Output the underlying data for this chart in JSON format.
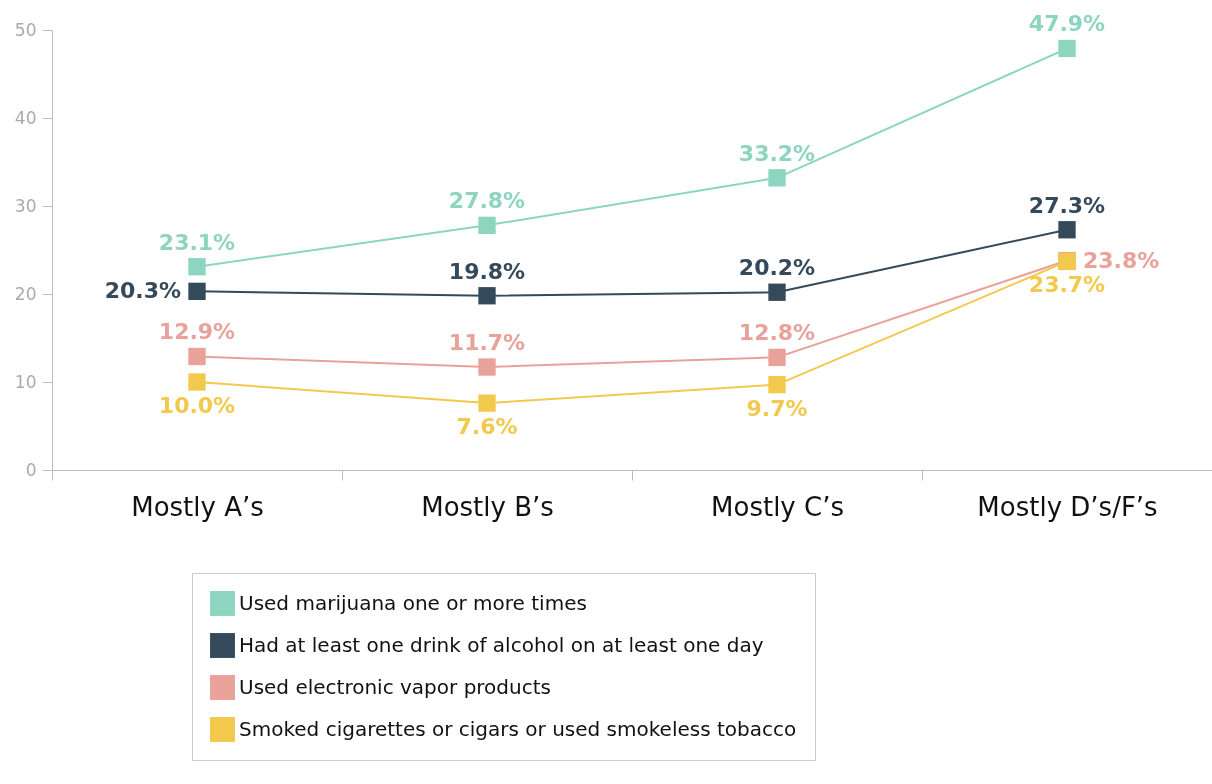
{
  "chart_data": {
    "type": "line",
    "categories": [
      "Mostly A’s",
      "Mostly B’s",
      "Mostly C’s",
      "Mostly D’s/F’s"
    ],
    "ylim": [
      0,
      50
    ],
    "yticks": [
      0,
      10,
      20,
      30,
      40,
      50
    ],
    "grid": false,
    "legend": "bottom",
    "marker": "square",
    "line_style": "solid",
    "series": [
      {
        "name": "Used marijuana one or more times",
        "color": "#8dd5bf",
        "values": [
          23.1,
          27.8,
          33.2,
          47.9
        ],
        "value_labels": [
          "23.1%",
          "27.8%",
          "33.2%",
          "47.9%"
        ]
      },
      {
        "name": "Had at least one drink of alcohol on at least one day",
        "color": "#344a5a",
        "values": [
          20.3,
          19.8,
          20.2,
          27.3
        ],
        "value_labels": [
          "20.3%",
          "19.8%",
          "20.2%",
          "27.3%"
        ]
      },
      {
        "name": "Used electronic vapor products",
        "color": "#e8a29a",
        "values": [
          12.9,
          11.7,
          12.8,
          23.8
        ],
        "value_labels": [
          "12.9%",
          "11.7%",
          "12.8%",
          "23.8%"
        ]
      },
      {
        "name": "Smoked cigarettes or cigars or used smokeless tobacco",
        "color": "#f2c94c",
        "values": [
          10.0,
          7.6,
          9.7,
          23.7
        ],
        "value_labels": [
          "10.0%",
          "7.6%",
          "9.7%",
          "23.7%"
        ]
      }
    ]
  }
}
